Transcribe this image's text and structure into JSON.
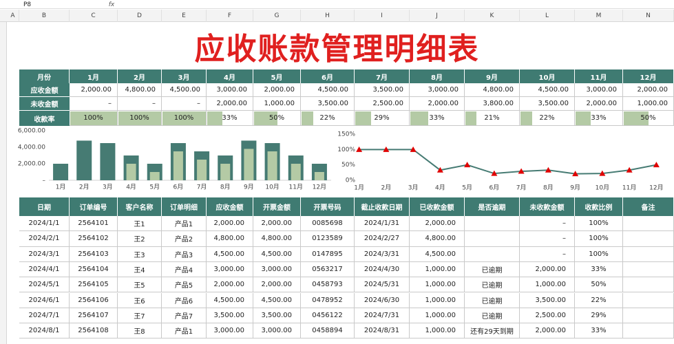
{
  "toolbar": {
    "cell_ref": "P8",
    "fx": "fx"
  },
  "column_headers": [
    "A",
    "B",
    "C",
    "D",
    "E",
    "F",
    "G",
    "H",
    "I",
    "J",
    "K",
    "L",
    "M",
    "N"
  ],
  "title": "应收账款管理明细表",
  "summary": {
    "header": [
      "月份",
      "1月",
      "2月",
      "3月",
      "4月",
      "5月",
      "6月",
      "7月",
      "8月",
      "9月",
      "10月",
      "11月",
      "12月"
    ],
    "rows": [
      [
        "应收金额",
        "2,000.00",
        "4,800.00",
        "4,500.00",
        "3,000.00",
        "2,000.00",
        "4,500.00",
        "3,500.00",
        "3,000.00",
        "4,800.00",
        "4,500.00",
        "3,000.00",
        "2,000.00"
      ],
      [
        "未收金额",
        "–",
        "–",
        "–",
        "2,000.00",
        "1,000.00",
        "3,500.00",
        "2,500.00",
        "2,000.00",
        "3,800.00",
        "3,500.00",
        "2,000.00",
        "1,000.00"
      ]
    ],
    "rate": {
      "label": "收款率",
      "values": [
        100,
        100,
        100,
        33,
        50,
        22,
        29,
        33,
        21,
        22,
        33,
        50
      ],
      "value_labels": [
        "100%",
        "100%",
        "100%",
        "33%",
        "50%",
        "22%",
        "29%",
        "33%",
        "21%",
        "22%",
        "33%",
        "50%"
      ]
    }
  },
  "chart_data": [
    {
      "type": "bar",
      "categories": [
        "1月",
        "2月",
        "3月",
        "4月",
        "5月",
        "6月",
        "7月",
        "8月",
        "9月",
        "10月",
        "11月",
        "12月"
      ],
      "series": [
        {
          "color": "#467b73",
          "values": [
            2000,
            4800,
            4500,
            3000,
            2000,
            4500,
            3500,
            3000,
            4800,
            4500,
            3000,
            2000
          ]
        },
        {
          "color": "#b4caa5",
          "values": [
            0,
            0,
            0,
            2000,
            1000,
            3500,
            2500,
            2000,
            3800,
            3500,
            2000,
            1000
          ]
        }
      ],
      "ylim": [
        0,
        6000
      ],
      "yticks": [
        {
          "value": 0,
          "label": "–"
        },
        {
          "value": 2000,
          "label": "2,000.00"
        },
        {
          "value": 4000,
          "label": "4,000.00"
        },
        {
          "value": 6000,
          "label": "6,000.00"
        }
      ]
    },
    {
      "type": "line",
      "categories": [
        "1月",
        "2月",
        "3月",
        "4月",
        "5月",
        "6月",
        "7月",
        "8月",
        "9月",
        "10月",
        "11月",
        "12月"
      ],
      "series": [
        {
          "color": "#467b73",
          "marker_color": "#e00000",
          "values": [
            100,
            100,
            100,
            33,
            50,
            22,
            29,
            33,
            21,
            22,
            33,
            50
          ]
        }
      ],
      "ylim": [
        0,
        150
      ],
      "yticks": [
        {
          "value": 0,
          "label": "0%"
        },
        {
          "value": 50,
          "label": "50%"
        },
        {
          "value": 100,
          "label": "100%"
        },
        {
          "value": 150,
          "label": "150%"
        }
      ]
    }
  ],
  "detail": {
    "header": [
      "日期",
      "订单编号",
      "客户名称",
      "订单明细",
      "应收金额",
      "开票金额",
      "开票号码",
      "截止收款日期",
      "已收款金额",
      "是否逾期",
      "未收款金额",
      "收款比例",
      "备注"
    ],
    "rows": [
      [
        "2024/1/1",
        "2564101",
        "王1",
        "产品1",
        "2,000.00",
        "2,000.00",
        "0085698",
        "2024/1/31",
        "2,000.00",
        null,
        "–",
        "100%",
        null
      ],
      [
        "2024/2/1",
        "2564102",
        "王2",
        "产品2",
        "4,800.00",
        "4,800.00",
        "0123589",
        "2024/2/27",
        "4,800.00",
        null,
        "–",
        "100%",
        null
      ],
      [
        "2024/3/1",
        "2564103",
        "王3",
        "产品3",
        "4,500.00",
        "4,500.00",
        "0147895",
        "2024/3/31",
        "4,500.00",
        null,
        "–",
        "100%",
        null
      ],
      [
        "2024/4/1",
        "2564104",
        "王4",
        "产品4",
        "3,000.00",
        "3,000.00",
        "0563217",
        "2024/4/30",
        "1,000.00",
        "已逾期",
        "2,000.00",
        "33%",
        null
      ],
      [
        "2024/5/1",
        "2564105",
        "王5",
        "产品5",
        "2,000.00",
        "2,000.00",
        "0458793",
        "2024/5/31",
        "1,000.00",
        "已逾期",
        "1,000.00",
        "50%",
        null
      ],
      [
        "2024/6/1",
        "2564106",
        "王6",
        "产品6",
        "4,500.00",
        "4,500.00",
        "0478952",
        "2024/6/30",
        "1,000.00",
        "已逾期",
        "3,500.00",
        "22%",
        null
      ],
      [
        "2024/7/1",
        "2564107",
        "王7",
        "产品7",
        "3,500.00",
        "3,500.00",
        "0456122",
        "2024/7/31",
        "1,000.00",
        "已逾期",
        "2,500.00",
        "29%",
        null
      ],
      [
        "2024/8/1",
        "2564108",
        "王8",
        "产品1",
        "3,000.00",
        "3,000.00",
        "0458894",
        "2024/8/31",
        "1,000.00",
        "还有29天到期",
        "2,000.00",
        "33%",
        null
      ]
    ]
  }
}
